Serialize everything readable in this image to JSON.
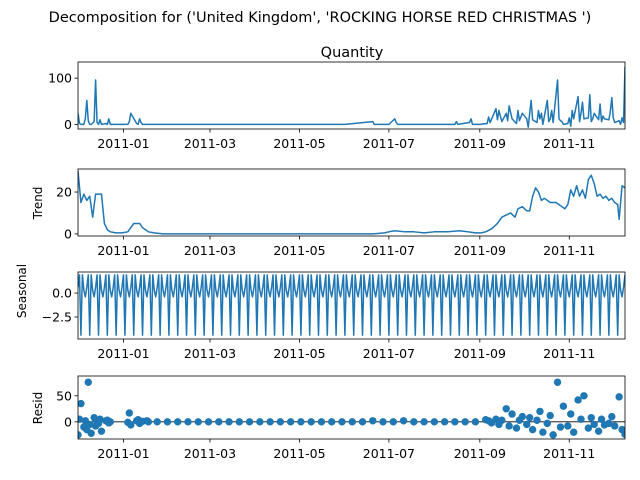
{
  "figure": {
    "suptitle": "Decomposition for ('United Kingdom', 'ROCKING HORSE RED CHRISTMAS ')"
  },
  "colors": {
    "series": "#1f77b4",
    "axis": "#000000",
    "zero_line": "#000000"
  },
  "chart_data": [
    {
      "type": "line",
      "title": "Quantity",
      "ylabel": "",
      "ylim": [
        -10,
        135
      ],
      "yticks": [
        0,
        100
      ],
      "ytick_labels": [
        "0",
        "100"
      ],
      "xlim": [
        "2010-12-01",
        "2011-12-09"
      ],
      "xticks": [
        "2011-01-01",
        "2011-03-01",
        "2011-05-01",
        "2011-07-01",
        "2011-09-01",
        "2011-11-01"
      ],
      "xtick_labels": [
        "2011-01",
        "2011-03",
        "2011-05",
        "2011-07",
        "2011-09",
        "2011-11"
      ],
      "series": [
        {
          "x": [
            "2010-12-01",
            "2010-12-02",
            "2010-12-03",
            "2010-12-05",
            "2010-12-06",
            "2010-12-07",
            "2010-12-08",
            "2010-12-09",
            "2010-12-10",
            "2010-12-12",
            "2010-12-13",
            "2010-12-14",
            "2010-12-15",
            "2010-12-16",
            "2010-12-17",
            "2010-12-20",
            "2010-12-21",
            "2010-12-22",
            "2010-12-23",
            "2011-01-04",
            "2011-01-05",
            "2011-01-06",
            "2011-01-10",
            "2011-01-11",
            "2011-01-12",
            "2011-01-13",
            "2011-01-14",
            "2011-01-17",
            "2011-02-01",
            "2011-03-01",
            "2011-04-01",
            "2011-05-01",
            "2011-06-01",
            "2011-06-20",
            "2011-06-21",
            "2011-06-22",
            "2011-07-01",
            "2011-07-05",
            "2011-07-06",
            "2011-07-07",
            "2011-08-01",
            "2011-08-15",
            "2011-08-16",
            "2011-08-17",
            "2011-08-25",
            "2011-08-26",
            "2011-08-27",
            "2011-09-01",
            "2011-09-06",
            "2011-09-07",
            "2011-09-08",
            "2011-09-12",
            "2011-09-13",
            "2011-09-14",
            "2011-09-16",
            "2011-09-19",
            "2011-09-20",
            "2011-09-21",
            "2011-09-23",
            "2011-09-26",
            "2011-09-27",
            "2011-09-28",
            "2011-09-30",
            "2011-10-03",
            "2011-10-04",
            "2011-10-05",
            "2011-10-06",
            "2011-10-07",
            "2011-10-10",
            "2011-10-11",
            "2011-10-12",
            "2011-10-13",
            "2011-10-14",
            "2011-10-17",
            "2011-10-18",
            "2011-10-19",
            "2011-10-20",
            "2011-10-21",
            "2011-10-24",
            "2011-10-25",
            "2011-10-26",
            "2011-10-27",
            "2011-10-28",
            "2011-10-31",
            "2011-11-01",
            "2011-11-02",
            "2011-11-03",
            "2011-11-04",
            "2011-11-07",
            "2011-11-08",
            "2011-11-09",
            "2011-11-10",
            "2011-11-11",
            "2011-11-14",
            "2011-11-15",
            "2011-11-16",
            "2011-11-17",
            "2011-11-18",
            "2011-11-21",
            "2011-11-22",
            "2011-11-23",
            "2011-11-24",
            "2011-11-25",
            "2011-11-28",
            "2011-11-29",
            "2011-11-30",
            "2011-12-01",
            "2011-12-02",
            "2011-12-05",
            "2011-12-06",
            "2011-12-07",
            "2011-12-08",
            "2011-12-09"
          ],
          "y": [
            24,
            2,
            0,
            0,
            12,
            52,
            8,
            0,
            0,
            6,
            96,
            4,
            0,
            10,
            0,
            2,
            0,
            12,
            0,
            0,
            6,
            24,
            2,
            0,
            12,
            4,
            0,
            0,
            0,
            0,
            0,
            0,
            0,
            6,
            0,
            0,
            0,
            12,
            4,
            0,
            0,
            0,
            6,
            0,
            4,
            12,
            0,
            0,
            2,
            16,
            4,
            34,
            10,
            30,
            6,
            24,
            8,
            40,
            12,
            2,
            30,
            8,
            24,
            12,
            -6,
            24,
            52,
            10,
            4,
            30,
            12,
            24,
            0,
            52,
            6,
            12,
            30,
            4,
            96,
            12,
            8,
            6,
            0,
            2,
            14,
            -4,
            30,
            12,
            60,
            6,
            24,
            48,
            12,
            14,
            64,
            6,
            12,
            24,
            10,
            44,
            6,
            18,
            12,
            10,
            28,
            58,
            14,
            4,
            8,
            0,
            14,
            4,
            125
          ]
        }
      ]
    },
    {
      "type": "line",
      "title": "",
      "ylabel": "Trend",
      "ylim": [
        -1,
        31
      ],
      "yticks": [
        0,
        20
      ],
      "ytick_labels": [
        "0",
        "20"
      ],
      "xlim": [
        "2010-12-01",
        "2011-12-09"
      ],
      "xticks": [
        "2011-01-01",
        "2011-03-01",
        "2011-05-01",
        "2011-07-01",
        "2011-09-01",
        "2011-11-01"
      ],
      "xtick_labels": [
        "2011-01",
        "2011-03",
        "2011-05",
        "2011-07",
        "2011-09",
        "2011-11"
      ],
      "series": [
        {
          "x": [
            "2010-12-01",
            "2010-12-03",
            "2010-12-05",
            "2010-12-07",
            "2010-12-09",
            "2010-12-11",
            "2010-12-13",
            "2010-12-15",
            "2010-12-17",
            "2010-12-19",
            "2010-12-21",
            "2010-12-23",
            "2010-12-27",
            "2010-12-31",
            "2011-01-04",
            "2011-01-08",
            "2011-01-12",
            "2011-01-14",
            "2011-01-18",
            "2011-01-22",
            "2011-01-28",
            "2011-02-05",
            "2011-03-01",
            "2011-04-01",
            "2011-05-01",
            "2011-06-01",
            "2011-06-15",
            "2011-06-20",
            "2011-06-28",
            "2011-07-01",
            "2011-07-05",
            "2011-07-12",
            "2011-07-18",
            "2011-07-25",
            "2011-08-01",
            "2011-08-10",
            "2011-08-18",
            "2011-08-24",
            "2011-08-29",
            "2011-09-02",
            "2011-09-05",
            "2011-09-08",
            "2011-09-10",
            "2011-09-13",
            "2011-09-16",
            "2011-09-19",
            "2011-09-22",
            "2011-09-25",
            "2011-09-27",
            "2011-09-30",
            "2011-10-03",
            "2011-10-05",
            "2011-10-07",
            "2011-10-09",
            "2011-10-11",
            "2011-10-13",
            "2011-10-15",
            "2011-10-17",
            "2011-10-19",
            "2011-10-21",
            "2011-10-23",
            "2011-10-25",
            "2011-10-27",
            "2011-10-29",
            "2011-10-31",
            "2011-11-02",
            "2011-11-04",
            "2011-11-06",
            "2011-11-08",
            "2011-11-10",
            "2011-11-12",
            "2011-11-14",
            "2011-11-16",
            "2011-11-18",
            "2011-11-20",
            "2011-11-22",
            "2011-11-24",
            "2011-11-26",
            "2011-11-28",
            "2011-11-30",
            "2011-12-02",
            "2011-12-04",
            "2011-12-05",
            "2011-12-07",
            "2011-12-09"
          ],
          "y": [
            30,
            15,
            19,
            16,
            18,
            8,
            19,
            19,
            19,
            5,
            2,
            1,
            0.5,
            0.5,
            1,
            5,
            5,
            3,
            1,
            0.5,
            0,
            0,
            0,
            0,
            0,
            0,
            0,
            0,
            0.5,
            1,
            1.5,
            1,
            1,
            0.5,
            1,
            1,
            1.5,
            1,
            0.5,
            0.5,
            1,
            2,
            3,
            5,
            8,
            9,
            10,
            8,
            12,
            13,
            11,
            11,
            18,
            22,
            20,
            16,
            17,
            16,
            15,
            15,
            15,
            14,
            13,
            12,
            14,
            21,
            18,
            23,
            18,
            21,
            17,
            26,
            28,
            24,
            18,
            19,
            17,
            18,
            16,
            17,
            15,
            14,
            7,
            23,
            22
          ]
        }
      ]
    },
    {
      "type": "line",
      "title": "",
      "ylabel": "Seasonal",
      "ylim": [
        -4.8,
        2.2
      ],
      "yticks": [
        0.0,
        -2.5
      ],
      "ytick_labels": [
        "0.0",
        "−2.5"
      ],
      "xlim": [
        "2010-12-01",
        "2011-12-09"
      ],
      "xticks": [
        "2011-01-01",
        "2011-03-01",
        "2011-05-01",
        "2011-07-01",
        "2011-09-01",
        "2011-11-01"
      ],
      "xtick_labels": [
        "2011-01",
        "2011-03",
        "2011-05",
        "2011-07",
        "2011-09",
        "2011-11"
      ],
      "period": 6,
      "pattern": [
        0.6,
        1.9,
        -4.4,
        1.9,
        0.3,
        -0.4
      ],
      "start": "2010-12-01",
      "end": "2011-12-09"
    },
    {
      "type": "scatter",
      "title": "",
      "ylabel": "Resid",
      "ylim": [
        -33,
        88
      ],
      "yticks": [
        0,
        50
      ],
      "ytick_labels": [
        "0",
        "50"
      ],
      "xlim": [
        "2010-12-01",
        "2011-12-09"
      ],
      "xticks": [
        "2011-01-01",
        "2011-03-01",
        "2011-05-01",
        "2011-07-01",
        "2011-09-01",
        "2011-11-01"
      ],
      "xtick_labels": [
        "2011-01",
        "2011-03",
        "2011-05",
        "2011-07",
        "2011-09",
        "2011-11"
      ],
      "points": {
        "x": [
          "2010-12-01",
          "2010-12-02",
          "2010-12-03",
          "2010-12-05",
          "2010-12-06",
          "2010-12-07",
          "2010-12-08",
          "2010-12-09",
          "2010-12-10",
          "2010-12-12",
          "2010-12-13",
          "2010-12-14",
          "2010-12-15",
          "2010-12-16",
          "2010-12-17",
          "2010-12-20",
          "2010-12-21",
          "2010-12-22",
          "2010-12-23",
          "2011-01-04",
          "2011-01-05",
          "2011-01-06",
          "2011-01-10",
          "2011-01-11",
          "2011-01-12",
          "2011-01-13",
          "2011-01-14",
          "2011-01-17",
          "2011-01-18",
          "2011-01-24",
          "2011-01-31",
          "2011-02-07",
          "2011-02-14",
          "2011-02-21",
          "2011-02-28",
          "2011-03-07",
          "2011-03-14",
          "2011-03-21",
          "2011-03-28",
          "2011-04-04",
          "2011-04-11",
          "2011-04-18",
          "2011-04-25",
          "2011-05-02",
          "2011-05-09",
          "2011-05-16",
          "2011-05-23",
          "2011-05-30",
          "2011-06-06",
          "2011-06-13",
          "2011-06-20",
          "2011-06-27",
          "2011-07-04",
          "2011-07-11",
          "2011-07-18",
          "2011-07-25",
          "2011-08-01",
          "2011-08-08",
          "2011-08-15",
          "2011-08-22",
          "2011-08-29",
          "2011-09-05",
          "2011-09-07",
          "2011-09-09",
          "2011-09-12",
          "2011-09-14",
          "2011-09-16",
          "2011-09-19",
          "2011-09-21",
          "2011-09-23",
          "2011-09-26",
          "2011-09-28",
          "2011-09-30",
          "2011-10-03",
          "2011-10-05",
          "2011-10-07",
          "2011-10-10",
          "2011-10-12",
          "2011-10-14",
          "2011-10-17",
          "2011-10-19",
          "2011-10-21",
          "2011-10-24",
          "2011-10-26",
          "2011-10-28",
          "2011-10-31",
          "2011-11-02",
          "2011-11-04",
          "2011-11-07",
          "2011-11-09",
          "2011-11-11",
          "2011-11-14",
          "2011-11-16",
          "2011-11-18",
          "2011-11-21",
          "2011-11-23",
          "2011-11-25",
          "2011-11-28",
          "2011-11-30",
          "2011-12-02",
          "2011-12-05",
          "2011-12-07",
          "2011-12-09"
        ],
        "y": [
          -25,
          5,
          35,
          -10,
          2,
          -15,
          76,
          -5,
          -22,
          8,
          -8,
          0,
          -3,
          5,
          -18,
          2,
          3,
          -2,
          0,
          -1,
          17,
          -6,
          2,
          4,
          -3,
          0,
          1,
          2,
          0,
          0,
          0,
          0,
          0,
          0,
          0,
          0,
          0,
          0,
          0,
          0,
          0,
          0,
          0,
          0,
          0,
          0,
          0,
          0,
          0,
          0,
          2,
          0,
          0,
          2,
          0,
          0,
          0,
          0,
          0,
          0,
          0,
          4,
          2,
          -2,
          5,
          -5,
          3,
          25,
          -8,
          15,
          -12,
          3,
          10,
          -5,
          8,
          -15,
          3,
          20,
          -20,
          -3,
          12,
          -25,
          76,
          -10,
          30,
          -8,
          15,
          -20,
          42,
          5,
          50,
          -12,
          8,
          -5,
          -18,
          5,
          -6,
          -3,
          10,
          -8,
          48,
          -15,
          -24
        ]
      }
    }
  ]
}
